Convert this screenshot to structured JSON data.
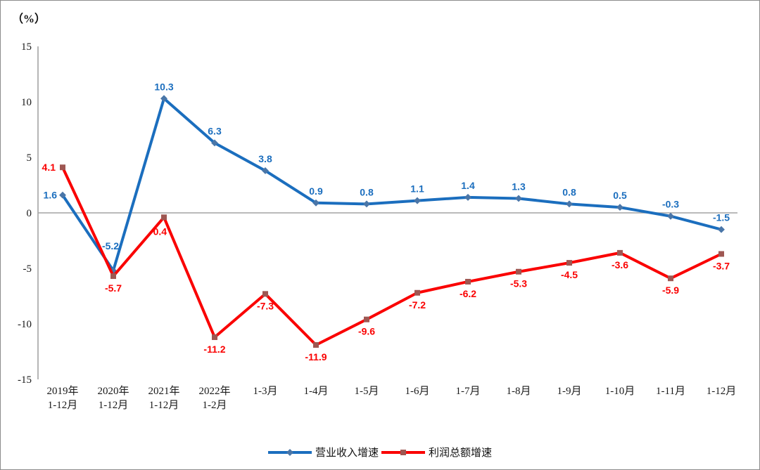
{
  "chart_data": {
    "type": "line",
    "unit_label": "（%）",
    "categories": [
      "2019年\n1-12月",
      "2020年\n1-12月",
      "2021年\n1-12月",
      "2022年\n1-2月",
      "1-3月",
      "1-4月",
      "1-5月",
      "1-6月",
      "1-7月",
      "1-8月",
      "1-9月",
      "1-10月",
      "1-11月",
      "1-12月"
    ],
    "series": [
      {
        "name": "营业收入增速",
        "color": "#1B6EBE",
        "marker": "diamond",
        "marker_color": "#4A76A8",
        "values": [
          1.6,
          -5.2,
          10.3,
          6.3,
          3.8,
          0.9,
          0.8,
          1.1,
          1.4,
          1.3,
          0.8,
          0.5,
          -0.3,
          -1.5
        ],
        "label_default_dy": -12,
        "label_overrides": {
          "0": {
            "dx": -8,
            "dy": 5,
            "anchor": "end"
          },
          "1": {
            "dx": -4,
            "dy": -30
          }
        }
      },
      {
        "name": "利润总额增速",
        "color": "#FA0000",
        "marker": "square",
        "marker_color": "#9E5752",
        "values": [
          4.1,
          -5.7,
          -0.4,
          -11.2,
          -7.3,
          -11.9,
          -9.6,
          -7.2,
          -6.2,
          -5.3,
          -4.5,
          -3.6,
          -5.9,
          -3.7
        ],
        "label_default_dy": 22,
        "label_overrides": {
          "0": {
            "dx": -10,
            "dy": 5,
            "anchor": "end"
          },
          "2": {
            "dx": -8,
            "dy": 25
          }
        }
      }
    ],
    "ylim": [
      -15,
      15
    ],
    "yticks": [
      15,
      10,
      5,
      0,
      -5,
      -10,
      -15
    ],
    "grid": "zero-line-only",
    "legend_position": "bottom-center",
    "axis_color": "#A3A3A3",
    "tick_label_color": "#1a1a1a"
  }
}
